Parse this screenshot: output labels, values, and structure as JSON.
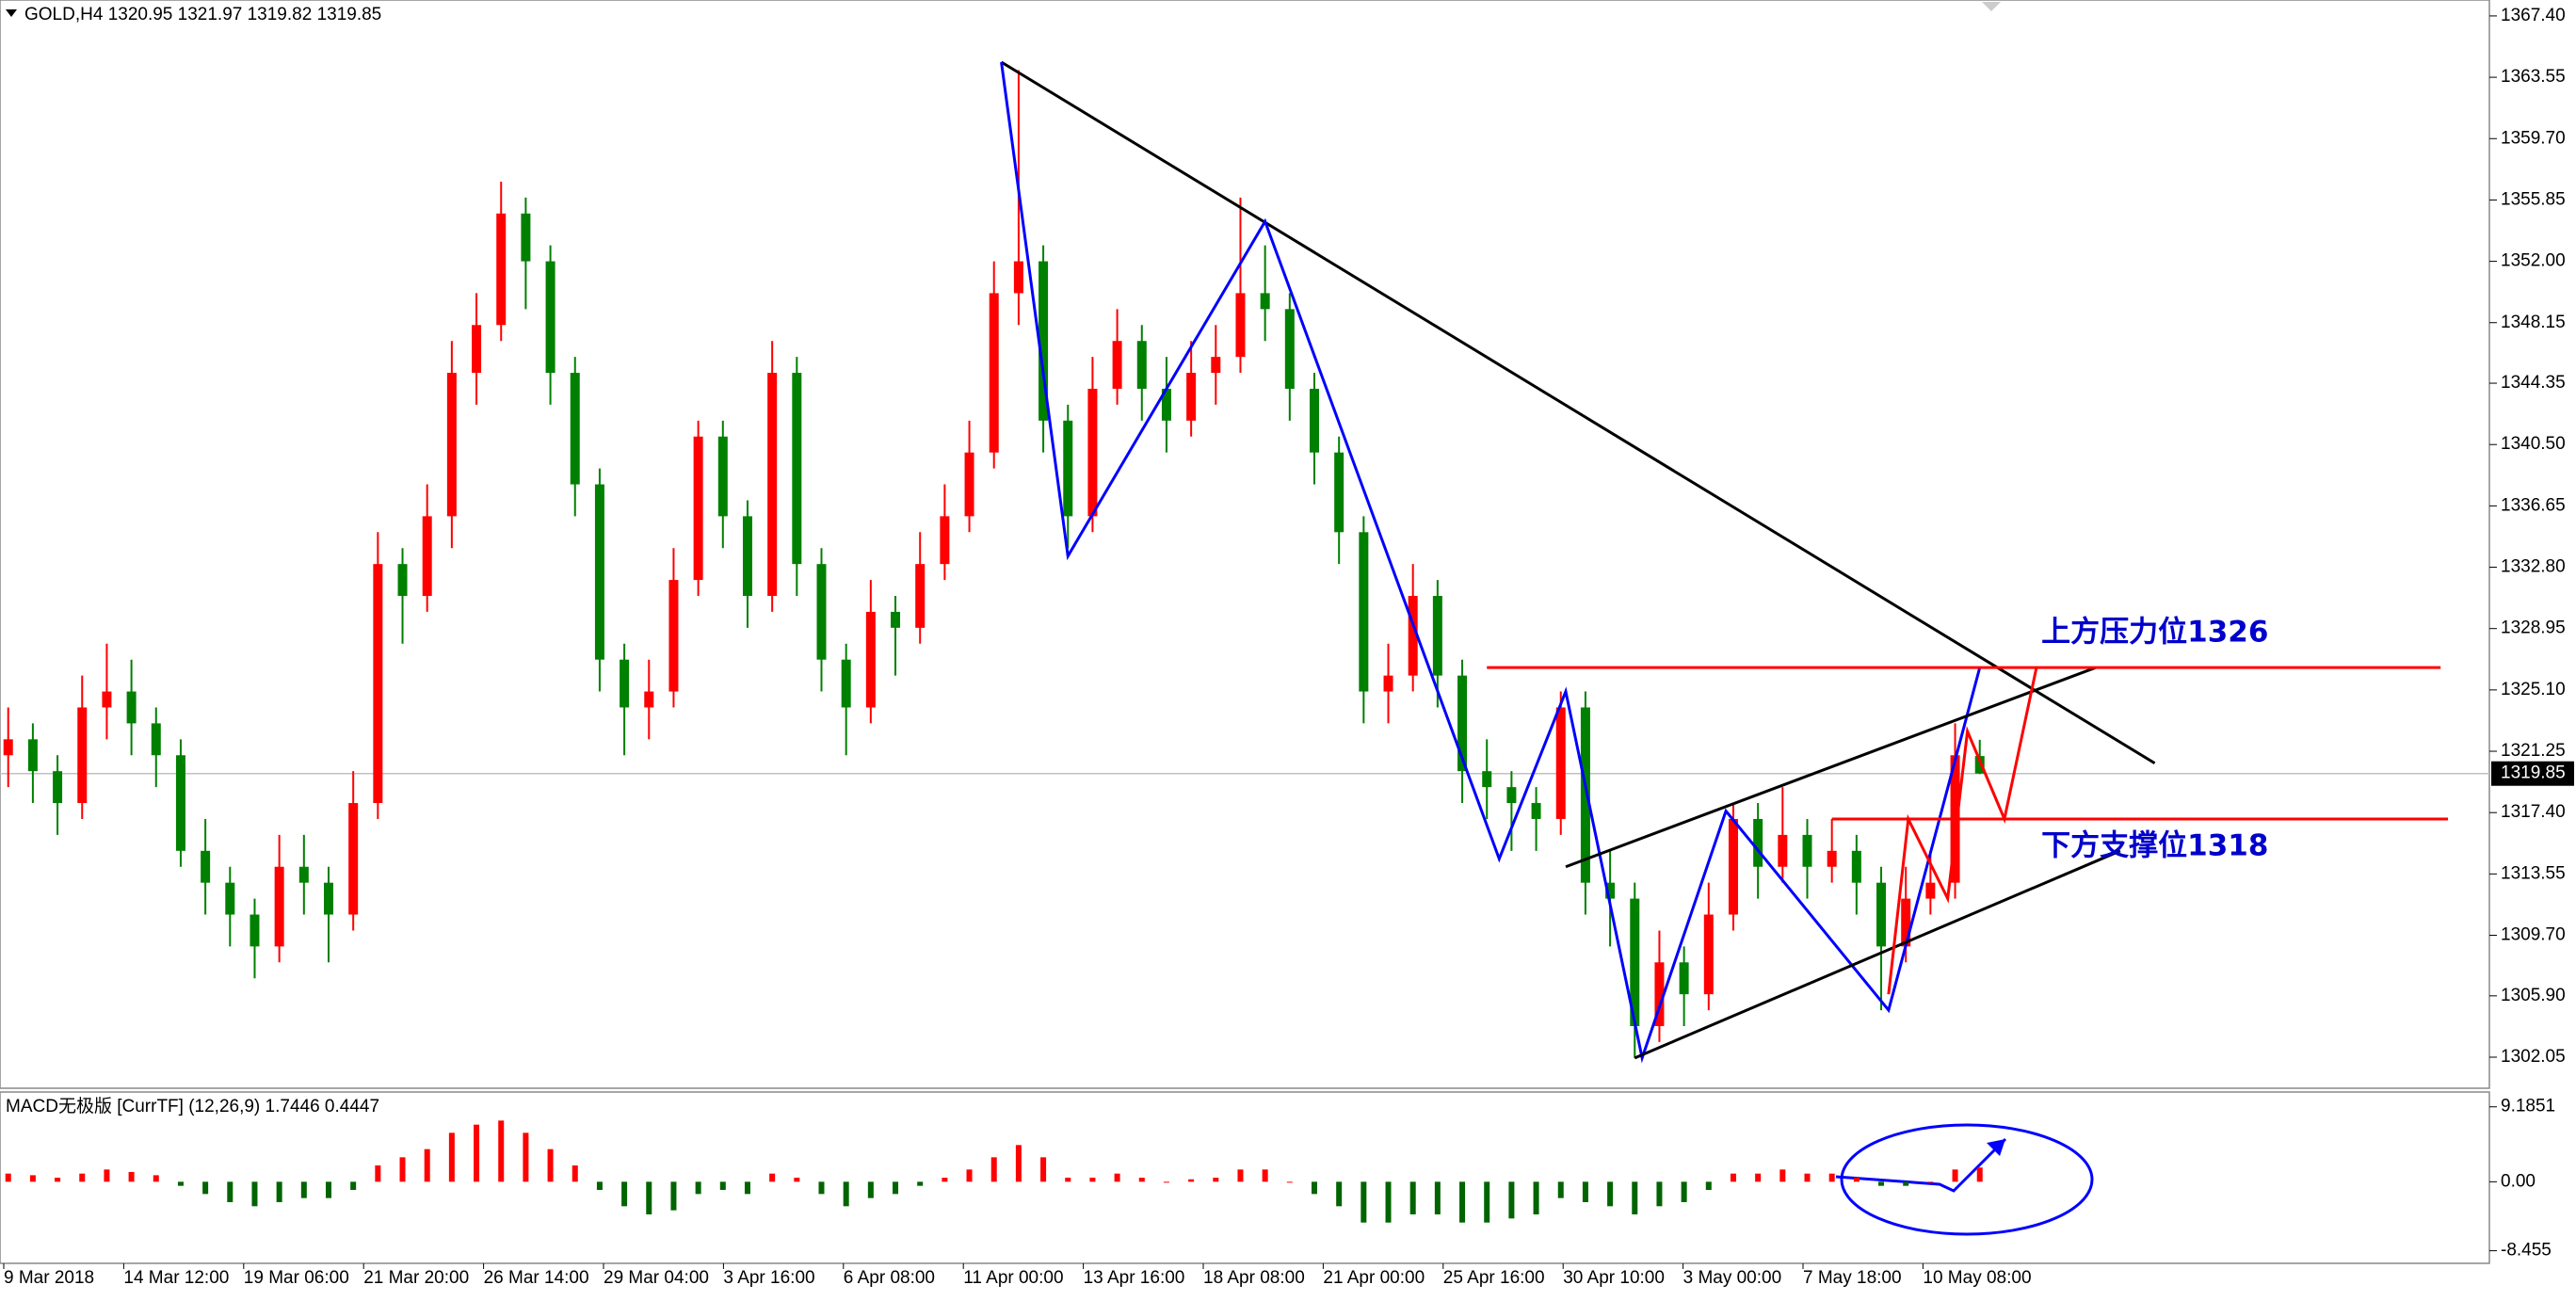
{
  "chart_data": [
    {
      "type": "candlestick",
      "title": "GOLD,H4  1320.95 1321.97 1319.82 1319.85",
      "open": [
        1321,
        1322,
        1320,
        1318,
        1324,
        1325,
        1323,
        1321,
        1315,
        1313,
        1311,
        1309,
        1314,
        1313,
        1311,
        1318,
        1333,
        1331,
        1336,
        1345,
        1348,
        1355,
        1352,
        1345,
        1338,
        1327,
        1324,
        1325,
        1332,
        1341,
        1336,
        1331,
        1345,
        1333,
        1327,
        1324,
        1330,
        1329,
        1333,
        1336,
        1340,
        1350,
        1352,
        1342,
        1336,
        1344,
        1347,
        1344,
        1342,
        1345,
        1346,
        1350,
        1349,
        1344,
        1340,
        1335,
        1325,
        1326,
        1331,
        1326,
        1320,
        1319,
        1318,
        1317,
        1324,
        1313,
        1312,
        1304,
        1308,
        1306,
        1311,
        1317,
        1314,
        1316,
        1314,
        1315,
        1313,
        1309,
        1312,
        1313,
        1320.95
      ],
      "high": [
        1324,
        1323,
        1321,
        1326,
        1328,
        1327,
        1324,
        1322,
        1317,
        1314,
        1312,
        1316,
        1316,
        1314,
        1320,
        1335,
        1334,
        1338,
        1347,
        1350,
        1357,
        1356,
        1353,
        1346,
        1339,
        1328,
        1327,
        1334,
        1342,
        1342,
        1337,
        1347,
        1346,
        1334,
        1328,
        1332,
        1331,
        1335,
        1338,
        1342,
        1352,
        1364,
        1353,
        1343,
        1346,
        1349,
        1348,
        1346,
        1347,
        1348,
        1356,
        1353,
        1350,
        1345,
        1341,
        1336,
        1328,
        1333,
        1332,
        1327,
        1322,
        1320,
        1319,
        1325,
        1325,
        1315,
        1313,
        1310,
        1309,
        1313,
        1318,
        1318,
        1319,
        1317,
        1317,
        1316,
        1314,
        1314,
        1315,
        1323,
        1321.97
      ],
      "low": [
        1319,
        1318,
        1316,
        1317,
        1322,
        1321,
        1319,
        1314,
        1311,
        1309,
        1307,
        1308,
        1311,
        1308,
        1310,
        1317,
        1328,
        1330,
        1334,
        1343,
        1347,
        1349,
        1343,
        1336,
        1325,
        1321,
        1322,
        1324,
        1331,
        1334,
        1329,
        1330,
        1331,
        1325,
        1321,
        1323,
        1326,
        1328,
        1332,
        1335,
        1339,
        1348,
        1340,
        1334,
        1335,
        1343,
        1342,
        1340,
        1341,
        1343,
        1345,
        1347,
        1342,
        1338,
        1333,
        1323,
        1323,
        1325,
        1324,
        1318,
        1317,
        1315,
        1315,
        1316,
        1311,
        1309,
        1302,
        1303,
        1304,
        1305,
        1310,
        1312,
        1313,
        1312,
        1313,
        1311,
        1305,
        1308,
        1311,
        1312,
        1319.82
      ],
      "close": [
        1322,
        1320,
        1318,
        1324,
        1325,
        1323,
        1321,
        1315,
        1313,
        1311,
        1309,
        1314,
        1313,
        1311,
        1318,
        1333,
        1331,
        1336,
        1345,
        1348,
        1355,
        1352,
        1345,
        1338,
        1327,
        1324,
        1325,
        1332,
        1341,
        1336,
        1331,
        1345,
        1333,
        1327,
        1324,
        1330,
        1329,
        1333,
        1336,
        1340,
        1350,
        1352,
        1342,
        1336,
        1344,
        1347,
        1344,
        1342,
        1345,
        1346,
        1350,
        1349,
        1344,
        1340,
        1335,
        1325,
        1326,
        1331,
        1326,
        1320,
        1319,
        1318,
        1317,
        1324,
        1313,
        1312,
        1304,
        1308,
        1306,
        1311,
        1317,
        1314,
        1316,
        1314,
        1315,
        1313,
        1309,
        1312,
        1313,
        1321,
        1319.85
      ],
      "up_color": "#ff0000",
      "down_color": "#008000",
      "ylim": [
        1300.1,
        1368.4
      ],
      "yticks": [
        {
          "value": 1367.4,
          "label": "1367.40"
        },
        {
          "value": 1363.55,
          "label": "1363.55"
        },
        {
          "value": 1359.7,
          "label": "1359.70"
        },
        {
          "value": 1355.85,
          "label": "1355.85"
        },
        {
          "value": 1352,
          "label": "1352.00"
        },
        {
          "value": 1348.15,
          "label": "1348.15"
        },
        {
          "value": 1344.35,
          "label": "1344.35"
        },
        {
          "value": 1340.5,
          "label": "1340.50"
        },
        {
          "value": 1336.65,
          "label": "1336.65"
        },
        {
          "value": 1332.8,
          "label": "1332.80"
        },
        {
          "value": 1328.95,
          "label": "1328.95"
        },
        {
          "value": 1325.1,
          "label": "1325.10"
        },
        {
          "value": 1321.25,
          "label": "1321.25"
        },
        {
          "value": 1317.4,
          "label": "1317.40"
        },
        {
          "value": 1313.55,
          "label": "1313.55"
        },
        {
          "value": 1309.7,
          "label": "1309.70"
        },
        {
          "value": 1305.9,
          "label": "1305.90"
        },
        {
          "value": 1302.05,
          "label": "1302.05"
        }
      ],
      "xtick_labels": [
        "9 Mar 2018",
        "14 Mar 12:00",
        "19 Mar 06:00",
        "21 Mar 20:00",
        "26 Mar 14:00",
        "29 Mar 04:00",
        "3 Apr 16:00",
        "6 Apr 08:00",
        "11 Apr 00:00",
        "13 Apr 16:00",
        "18 Apr 08:00",
        "21 Apr 00:00",
        "25 Apr 16:00",
        "30 Apr 10:00",
        "3 May 00:00",
        "7 May 18:00",
        "10 May 08:00"
      ],
      "last_price": {
        "value": 1319.85,
        "label": "1319.85"
      },
      "lines": [
        {
          "color": "#000000",
          "x": [
            40.3,
            87.1
          ],
          "y": [
            1364.5,
            1320.5
          ]
        },
        {
          "color": "#0000ff",
          "x": [
            40.3,
            43,
            51,
            60.5,
            63.2,
            66.3,
            69.7,
            76.3,
            80
          ],
          "y": [
            1364.5,
            1333.5,
            1354.5,
            1314.5,
            1325,
            1302,
            1317.5,
            1305,
            1326.5
          ]
        },
        {
          "color": "#000000",
          "x": [
            63.2,
            84.7
          ],
          "y": [
            1314,
            1326.5
          ]
        },
        {
          "color": "#000000",
          "x": [
            66,
            85.7
          ],
          "y": [
            1302,
            1315
          ]
        },
        {
          "color": "#ff0000",
          "x": [
            60,
            98.7
          ],
          "y": [
            1326.5,
            1326.5
          ]
        },
        {
          "color": "#ff0000",
          "x": [
            74,
            99
          ],
          "y": [
            1317,
            1317
          ]
        },
        {
          "color": "#ff0000",
          "x": [
            76.3,
            77.1,
            78.7,
            79.5,
            81,
            82.3
          ],
          "y": [
            1306,
            1317,
            1312,
            1322.5,
            1317,
            1326.5
          ]
        }
      ],
      "annotations": [
        {
          "text": "上方压力位1326",
          "color": "#0000cc"
        },
        {
          "text": "下方支撑位1318",
          "color": "#0000cc"
        }
      ]
    },
    {
      "type": "bar",
      "title": "MACD无极版 [CurrTF] (12,26,9) 1.7446 0.4447",
      "values": [
        1,
        0.8,
        0.5,
        1,
        1.5,
        1.2,
        0.8,
        -0.5,
        -1.5,
        -2.5,
        -3,
        -2.5,
        -2,
        -2,
        -1,
        2,
        3,
        4,
        6,
        7,
        7.5,
        6,
        4,
        2,
        -1,
        -3,
        -4,
        -3.5,
        -1.5,
        -1,
        -1.5,
        1,
        0.5,
        -1.5,
        -3,
        -2,
        -1.5,
        -0.5,
        0.5,
        1.5,
        3,
        4.5,
        3,
        0.5,
        0.5,
        1,
        0.5,
        0,
        0.3,
        0.5,
        1.5,
        1.5,
        0,
        -1.5,
        -3,
        -5,
        -5,
        -4,
        -4,
        -5,
        -5,
        -4.5,
        -4,
        -2,
        -2.5,
        -3,
        -4,
        -3,
        -2.5,
        -1,
        1,
        1,
        1.5,
        1,
        1,
        0.5,
        -0.5,
        -0.5,
        0,
        1.5,
        1.7446
      ],
      "up_color": "#ff0000",
      "down_color": "#006400",
      "ylim": [
        -10,
        11
      ],
      "yticks": [
        {
          "value": 9.1851,
          "label": "9.1851"
        },
        {
          "value": 0,
          "label": "0.00"
        },
        {
          "value": -8.455,
          "label": "-8.455"
        }
      ]
    }
  ]
}
